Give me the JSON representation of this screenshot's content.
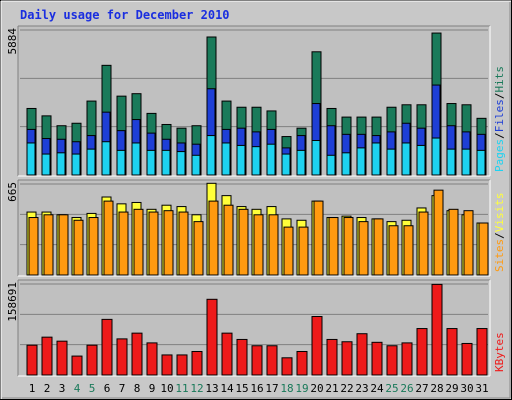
{
  "title": "Daily usage for December 2010",
  "colors": {
    "hits": "#1a7a5a",
    "files": "#1e3fd6",
    "pages": "#1ed2f0",
    "visits": "#ffff3a",
    "sites": "#ff9a10",
    "kbytes": "#ee1a1a",
    "weekend_label": "#1a7a5a",
    "title": "#1a2ee0"
  },
  "chart_data": [
    {
      "type": "bar",
      "categories": [
        "1",
        "2",
        "3",
        "4",
        "5",
        "6",
        "7",
        "8",
        "9",
        "10",
        "11",
        "12",
        "13",
        "14",
        "15",
        "16",
        "17",
        "18",
        "19",
        "20",
        "21",
        "22",
        "23",
        "24",
        "25",
        "26",
        "27",
        "28",
        "29",
        "30",
        "31"
      ],
      "weekend_days": [
        "4",
        "5",
        "11",
        "12",
        "18",
        "19",
        "25",
        "26"
      ],
      "y_tick_label": "5884",
      "ylim": [
        0,
        5884
      ],
      "grid": true,
      "legend": [
        "Pages",
        "Files",
        "Hits"
      ],
      "series": [
        {
          "name": "Hits",
          "values": [
            2700,
            2400,
            2000,
            2100,
            3000,
            4450,
            3200,
            3300,
            2500,
            2050,
            1900,
            2000,
            5600,
            3000,
            2750,
            2750,
            2600,
            1560,
            1900,
            5000,
            2700,
            2350,
            2350,
            2350,
            2750,
            2850,
            2850,
            5760,
            2900,
            2850,
            2300
          ]
        },
        {
          "name": "Files",
          "values": [
            1850,
            1480,
            1450,
            1350,
            1600,
            2550,
            1800,
            2250,
            1700,
            1450,
            1300,
            1250,
            3500,
            1850,
            1900,
            1750,
            1850,
            1100,
            1600,
            2900,
            2000,
            1650,
            1650,
            1600,
            1750,
            2100,
            1900,
            3650,
            2000,
            1750,
            1650
          ]
        },
        {
          "name": "Pages",
          "values": [
            1300,
            850,
            900,
            850,
            1050,
            1350,
            1000,
            1300,
            1000,
            1000,
            950,
            800,
            1600,
            1300,
            1200,
            1150,
            1250,
            850,
            1000,
            1400,
            800,
            900,
            1100,
            1300,
            1050,
            1300,
            1200,
            1500,
            1050,
            1050,
            1000
          ]
        }
      ]
    },
    {
      "type": "bar",
      "categories": [
        "1",
        "2",
        "3",
        "4",
        "5",
        "6",
        "7",
        "8",
        "9",
        "10",
        "11",
        "12",
        "13",
        "14",
        "15",
        "16",
        "17",
        "18",
        "19",
        "20",
        "21",
        "22",
        "23",
        "24",
        "25",
        "26",
        "27",
        "28",
        "29",
        "30",
        "31"
      ],
      "y_tick_label": "665",
      "ylim": [
        0,
        665
      ],
      "grid": true,
      "legend": [
        "Sites",
        "Visits"
      ],
      "series": [
        {
          "name": "Visits",
          "values": [
            460,
            460,
            440,
            420,
            450,
            570,
            520,
            530,
            480,
            510,
            500,
            440,
            670,
            580,
            500,
            480,
            500,
            410,
            400,
            540,
            420,
            430,
            420,
            410,
            390,
            400,
            490,
            580,
            470,
            440,
            380
          ]
        },
        {
          "name": "Sites",
          "values": [
            420,
            440,
            440,
            400,
            420,
            540,
            460,
            480,
            460,
            470,
            460,
            390,
            540,
            510,
            480,
            440,
            440,
            350,
            350,
            540,
            420,
            420,
            390,
            410,
            360,
            360,
            460,
            620,
            480,
            470,
            380
          ]
        }
      ]
    },
    {
      "type": "bar",
      "categories": [
        "1",
        "2",
        "3",
        "4",
        "5",
        "6",
        "7",
        "8",
        "9",
        "10",
        "11",
        "12",
        "13",
        "14",
        "15",
        "16",
        "17",
        "18",
        "19",
        "20",
        "21",
        "22",
        "23",
        "24",
        "25",
        "26",
        "27",
        "28",
        "29",
        "30",
        "31"
      ],
      "y_tick_label": "158691",
      "ylim": [
        0,
        158691
      ],
      "grid": true,
      "legend": [
        "KBytes"
      ],
      "series": [
        {
          "name": "KBytes",
          "values": [
            52000,
            66000,
            59000,
            33000,
            52000,
            97000,
            63000,
            73000,
            56000,
            35000,
            35000,
            41000,
            132000,
            73000,
            62000,
            51000,
            51000,
            30000,
            41000,
            102000,
            62000,
            58000,
            72000,
            57000,
            51000,
            56000,
            81000,
            158000,
            81000,
            55000,
            81000
          ]
        }
      ]
    }
  ]
}
